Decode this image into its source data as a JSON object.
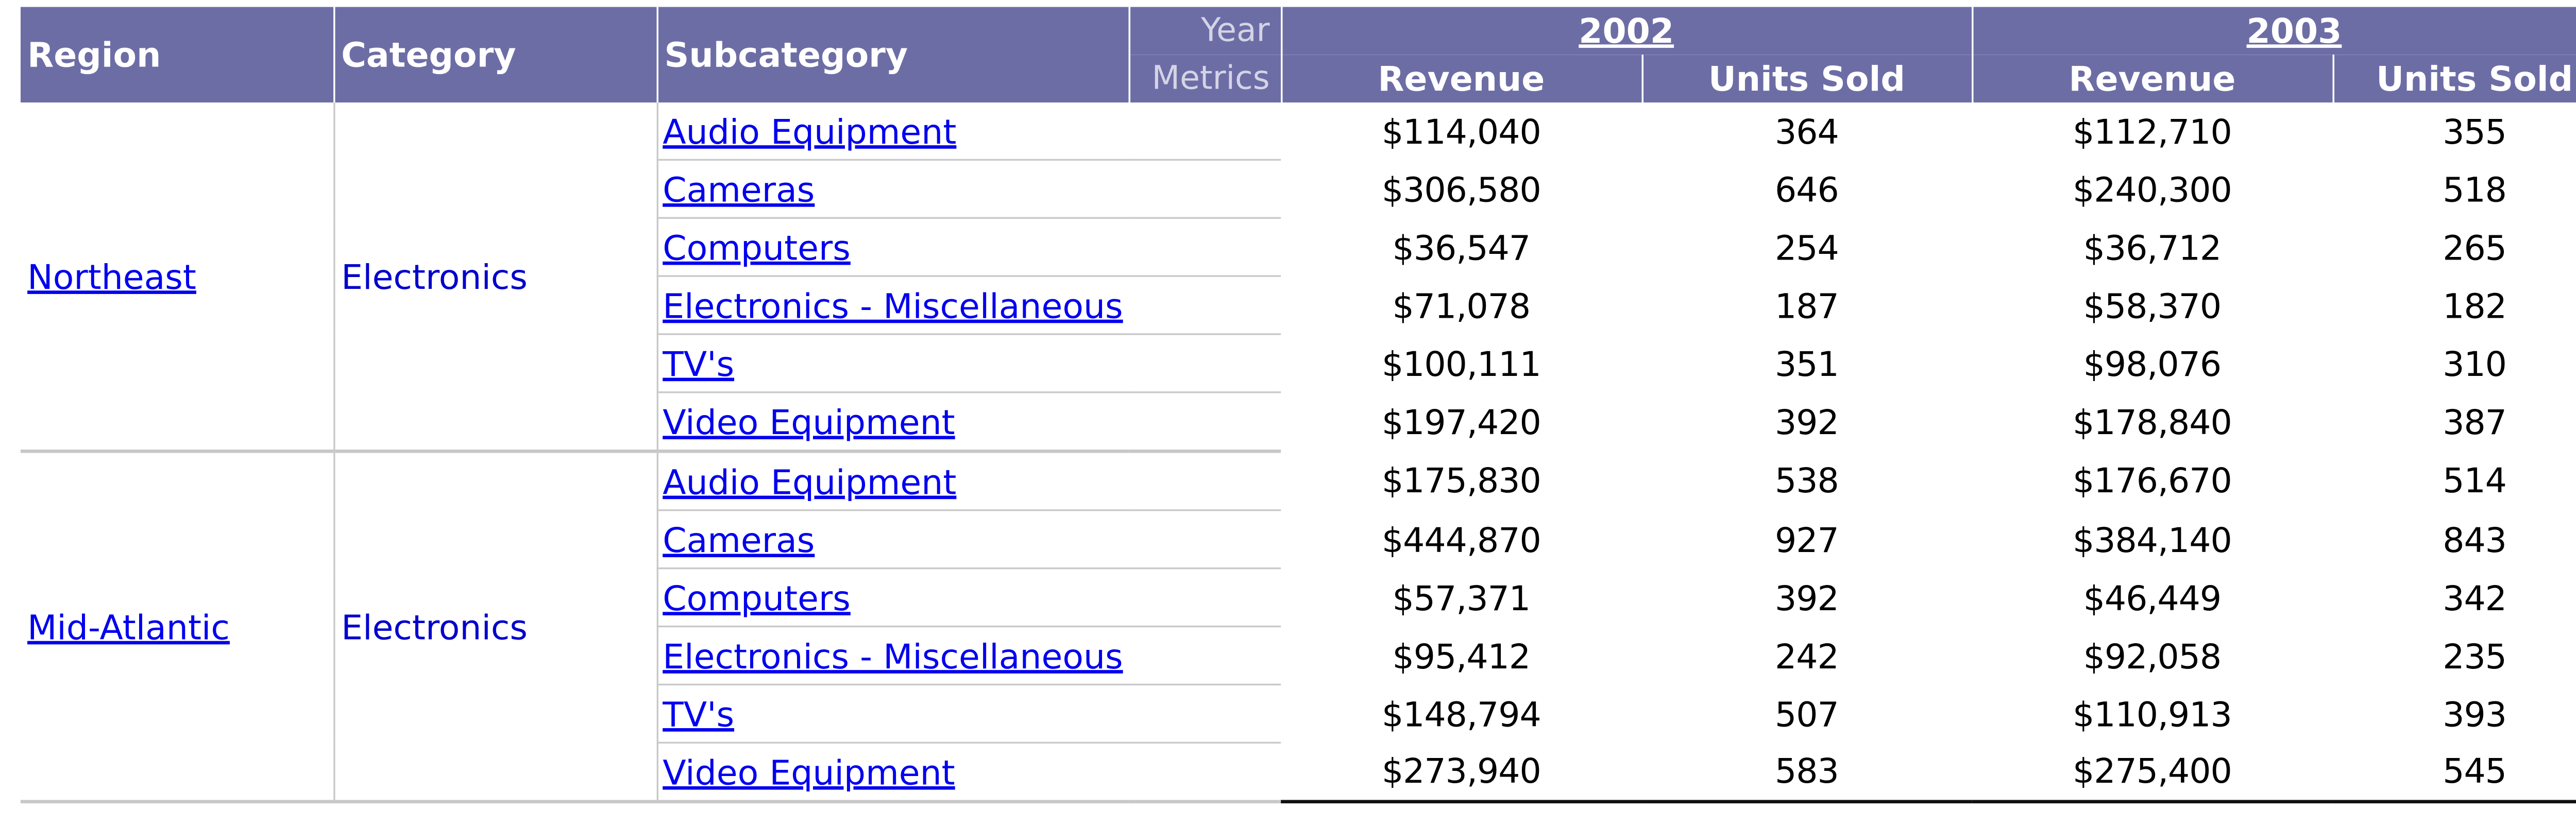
{
  "headers": {
    "region": "Region",
    "category": "Category",
    "subcategory": "Subcategory",
    "year_label": "Year",
    "metrics_label": "Metrics",
    "years": [
      "2002",
      "2003"
    ],
    "metrics": [
      "Revenue",
      "Units Sold",
      "Revenue",
      "Units Sold"
    ]
  },
  "groups": [
    {
      "region": "Northeast",
      "category": "Electronics",
      "rows": [
        {
          "subcategory": "Audio Equipment",
          "rev2002": "$114,040",
          "units2002": "364",
          "rev2003": "$112,710",
          "units2003": "355"
        },
        {
          "subcategory": "Cameras",
          "rev2002": "$306,580",
          "units2002": "646",
          "rev2003": "$240,300",
          "units2003": "518"
        },
        {
          "subcategory": "Computers",
          "rev2002": "$36,547",
          "units2002": "254",
          "rev2003": "$36,712",
          "units2003": "265"
        },
        {
          "subcategory": "Electronics - Miscellaneous",
          "rev2002": "$71,078",
          "units2002": "187",
          "rev2003": "$58,370",
          "units2003": "182"
        },
        {
          "subcategory": "TV's",
          "rev2002": "$100,111",
          "units2002": "351",
          "rev2003": "$98,076",
          "units2003": "310"
        },
        {
          "subcategory": "Video Equipment",
          "rev2002": "$197,420",
          "units2002": "392",
          "rev2003": "$178,840",
          "units2003": "387"
        }
      ]
    },
    {
      "region": "Mid-Atlantic",
      "category": "Electronics",
      "rows": [
        {
          "subcategory": "Audio Equipment",
          "rev2002": "$175,830",
          "units2002": "538",
          "rev2003": "$176,670",
          "units2003": "514"
        },
        {
          "subcategory": "Cameras",
          "rev2002": "$444,870",
          "units2002": "927",
          "rev2003": "$384,140",
          "units2003": "843"
        },
        {
          "subcategory": "Computers",
          "rev2002": "$57,371",
          "units2002": "392",
          "rev2003": "$46,449",
          "units2003": "342"
        },
        {
          "subcategory": "Electronics - Miscellaneous",
          "rev2002": "$95,412",
          "units2002": "242",
          "rev2003": "$92,058",
          "units2003": "235"
        },
        {
          "subcategory": "TV's",
          "rev2002": "$148,794",
          "units2002": "507",
          "rev2003": "$110,913",
          "units2003": "393"
        },
        {
          "subcategory": "Video Equipment",
          "rev2002": "$273,940",
          "units2002": "583",
          "rev2003": "$275,400",
          "units2003": "545"
        }
      ]
    }
  ]
}
